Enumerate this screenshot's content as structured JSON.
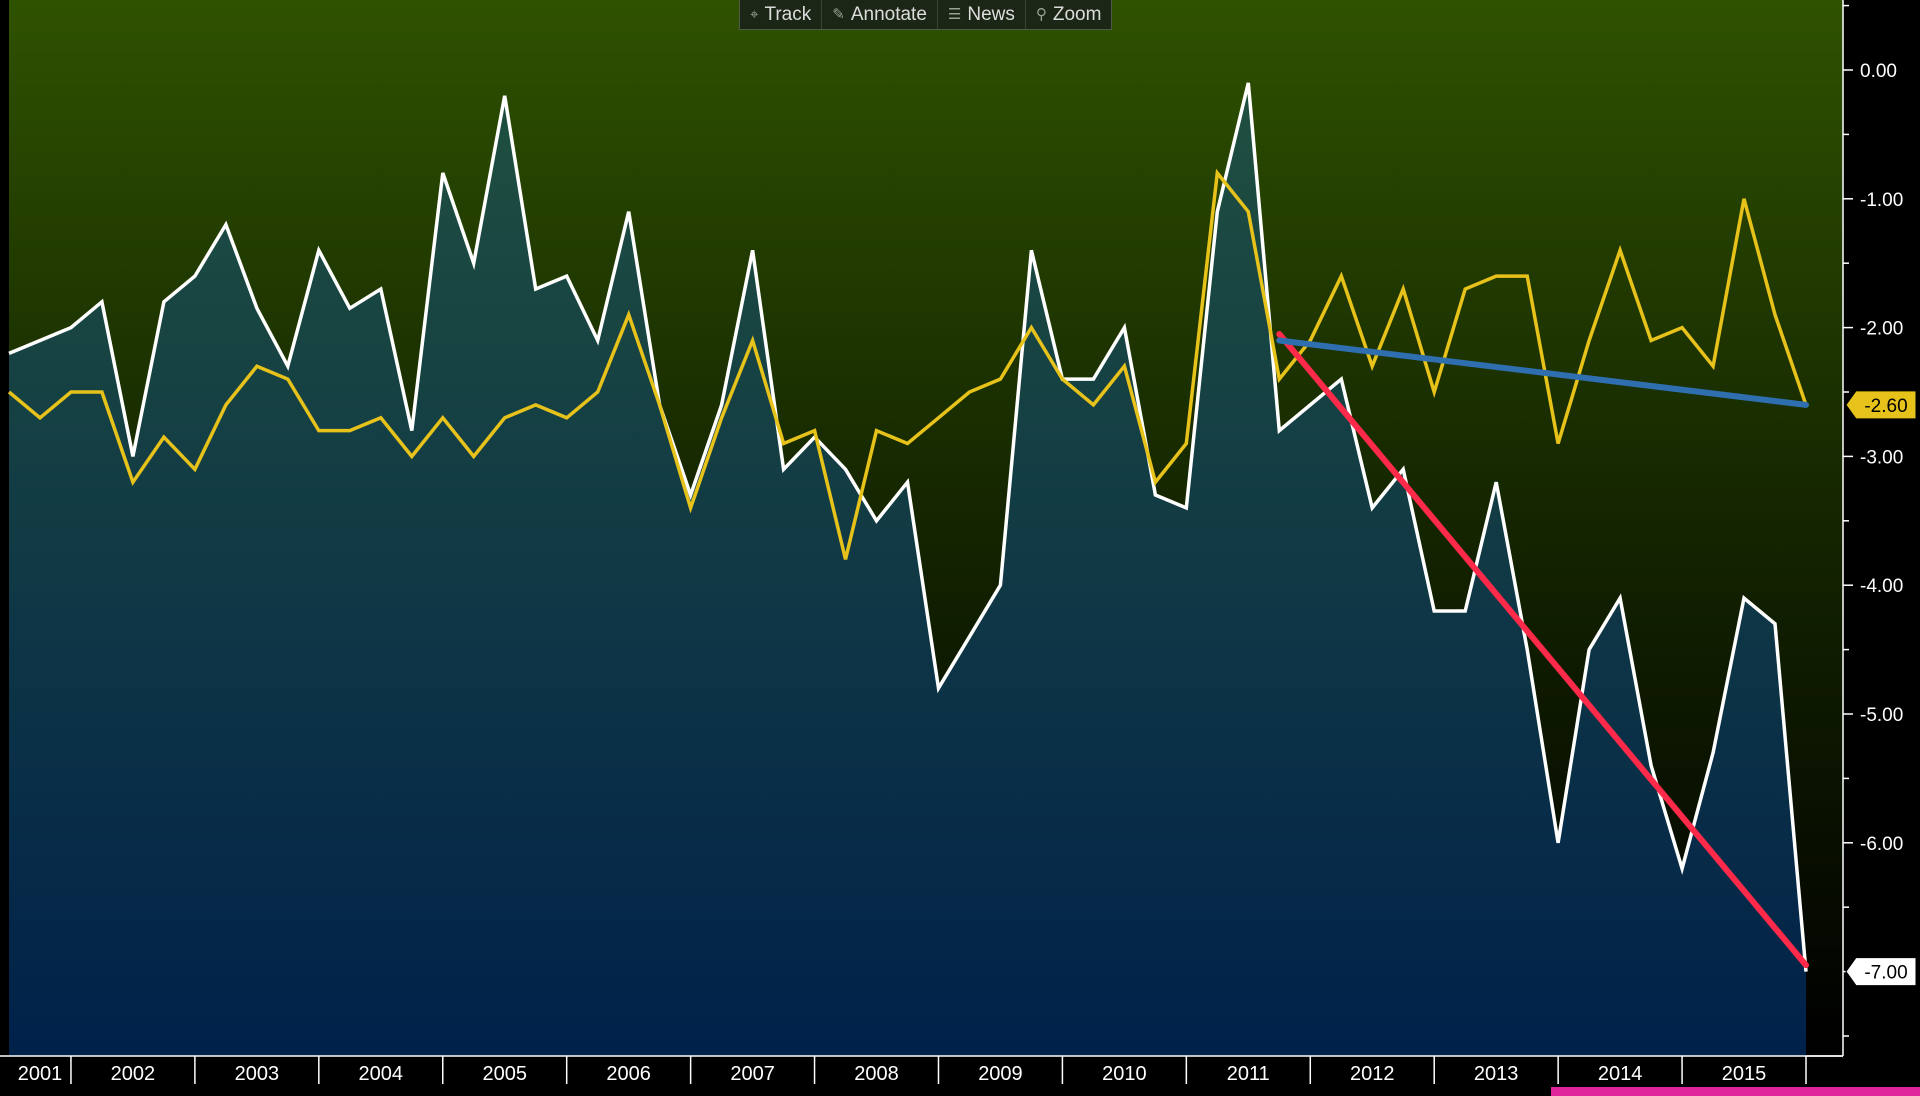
{
  "toolbar": {
    "buttons": [
      {
        "label": "Track",
        "icon": "crosshair-icon"
      },
      {
        "label": "Annotate",
        "icon": "pencil-icon"
      },
      {
        "label": "News",
        "icon": "news-icon"
      },
      {
        "label": "Zoom",
        "icon": "magnifier-icon"
      }
    ]
  },
  "chart_data": {
    "type": "line",
    "x_labels": [
      "2001",
      "2002",
      "2003",
      "2004",
      "2005",
      "2006",
      "2007",
      "2008",
      "2009",
      "2010",
      "2011",
      "2012",
      "2013",
      "2014",
      "2015"
    ],
    "y_ticks": [
      "0.00",
      "-1.00",
      "-2.00",
      "-3.00",
      "-4.00",
      "-5.00",
      "-6.00"
    ],
    "ylim": [
      -7.8,
      0.55
    ],
    "series": [
      {
        "color": "#ffffff",
        "filled": true,
        "last_value_label": "-7.00",
        "values": [
          -2.2,
          -2.1,
          -2.0,
          -1.8,
          -3.0,
          -1.8,
          -1.6,
          -1.2,
          -1.85,
          -2.3,
          -1.4,
          -1.85,
          -1.7,
          -2.8,
          -0.8,
          -1.5,
          -0.2,
          -1.7,
          -1.6,
          -2.1,
          -1.1,
          -2.6,
          -3.3,
          -2.6,
          -1.4,
          -3.1,
          -2.85,
          -3.1,
          -3.5,
          -3.2,
          -4.8,
          -4.4,
          -4.0,
          -1.4,
          -2.4,
          -2.4,
          -2.0,
          -3.3,
          -3.4,
          -1.1,
          -0.1,
          -2.8,
          -2.6,
          -2.4,
          -3.4,
          -3.1,
          -4.2,
          -4.2,
          -3.2,
          -4.5,
          -6.0,
          -4.5,
          -4.1,
          -5.4,
          -6.2,
          -5.3,
          -4.1,
          -4.3,
          -7.0
        ]
      },
      {
        "color": "#e6c21a",
        "filled": false,
        "last_value_label": "-2.60",
        "values": [
          -2.5,
          -2.7,
          -2.5,
          -2.5,
          -3.2,
          -2.85,
          -3.1,
          -2.6,
          -2.3,
          -2.4,
          -2.8,
          -2.8,
          -2.7,
          -3.0,
          -2.7,
          -3.0,
          -2.7,
          -2.6,
          -2.7,
          -2.5,
          -1.9,
          -2.6,
          -3.4,
          -2.7,
          -2.1,
          -2.9,
          -2.8,
          -3.8,
          -2.8,
          -2.9,
          -2.7,
          -2.5,
          -2.4,
          -2.0,
          -2.4,
          -2.6,
          -2.3,
          -3.2,
          -2.9,
          -0.8,
          -1.1,
          -2.4,
          -2.1,
          -1.6,
          -2.3,
          -1.7,
          -2.5,
          -1.7,
          -1.6,
          -1.6,
          -2.9,
          -2.1,
          -1.4,
          -2.1,
          -2.0,
          -2.3,
          -1.0,
          -1.9,
          -2.6
        ]
      }
    ],
    "trend_lines": [
      {
        "color": "#ff2a4a",
        "from_index": 41,
        "from_value": -2.05,
        "to_index": 58,
        "to_value": -6.95
      },
      {
        "color": "#2f6fb0",
        "from_index": 41,
        "from_value": -2.1,
        "to_index": 58,
        "to_value": -2.6
      }
    ],
    "colors": {
      "plot_top": "#2f5200",
      "plot_mid": "#142400",
      "plot_bottom": "#000000",
      "fill_top": "#205040",
      "fill_bottom": "#00214a",
      "axis": "#ffffff",
      "highlight_bar": "#e0249a"
    }
  }
}
